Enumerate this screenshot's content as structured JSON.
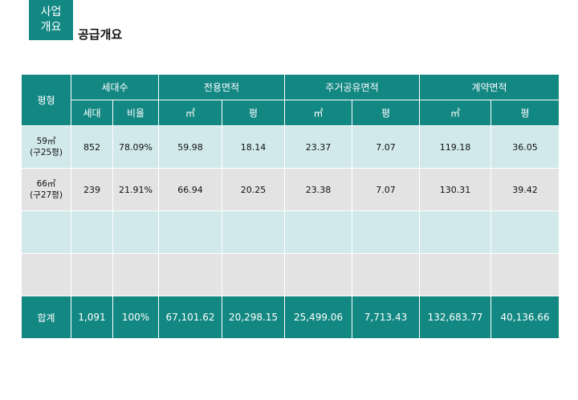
{
  "header": {
    "badge_line1": "사업",
    "badge_line2": "개요",
    "title": "공급개요"
  },
  "table": {
    "headers": {
      "type": "평형",
      "households": "세대수",
      "exclusive_area": "전용면적",
      "common_area": "주거공유면적",
      "contract_area": "계약면적",
      "sub_households": "세대",
      "sub_ratio": "비율",
      "sub_sqm_1": "㎡",
      "sub_pyeong_1": "평",
      "sub_sqm_2": "㎡",
      "sub_pyeong_2": "평",
      "sub_sqm_3": "㎡",
      "sub_pyeong_3": "평"
    },
    "rows": [
      {
        "type_line1": "59㎡",
        "type_line2": "(구25평)",
        "households": "852",
        "ratio": "78.09%",
        "excl_sqm": "59.98",
        "excl_py": "18.14",
        "common_sqm": "23.37",
        "common_py": "7.07",
        "contract_sqm": "119.18",
        "contract_py": "36.05"
      },
      {
        "type_line1": "66㎡",
        "type_line2": "(구27평)",
        "households": "239",
        "ratio": "21.91%",
        "excl_sqm": "66.94",
        "excl_py": "20.25",
        "common_sqm": "23.38",
        "common_py": "7.07",
        "contract_sqm": "130.31",
        "contract_py": "39.42"
      }
    ],
    "total": {
      "label": "합계",
      "households": "1,091",
      "ratio": "100%",
      "excl_sqm": "67,101.62",
      "excl_py": "20,298.15",
      "common_sqm": "25,499.06",
      "common_py": "7,713.43",
      "contract_sqm": "132,683.77",
      "contract_py": "40,136.66"
    }
  }
}
